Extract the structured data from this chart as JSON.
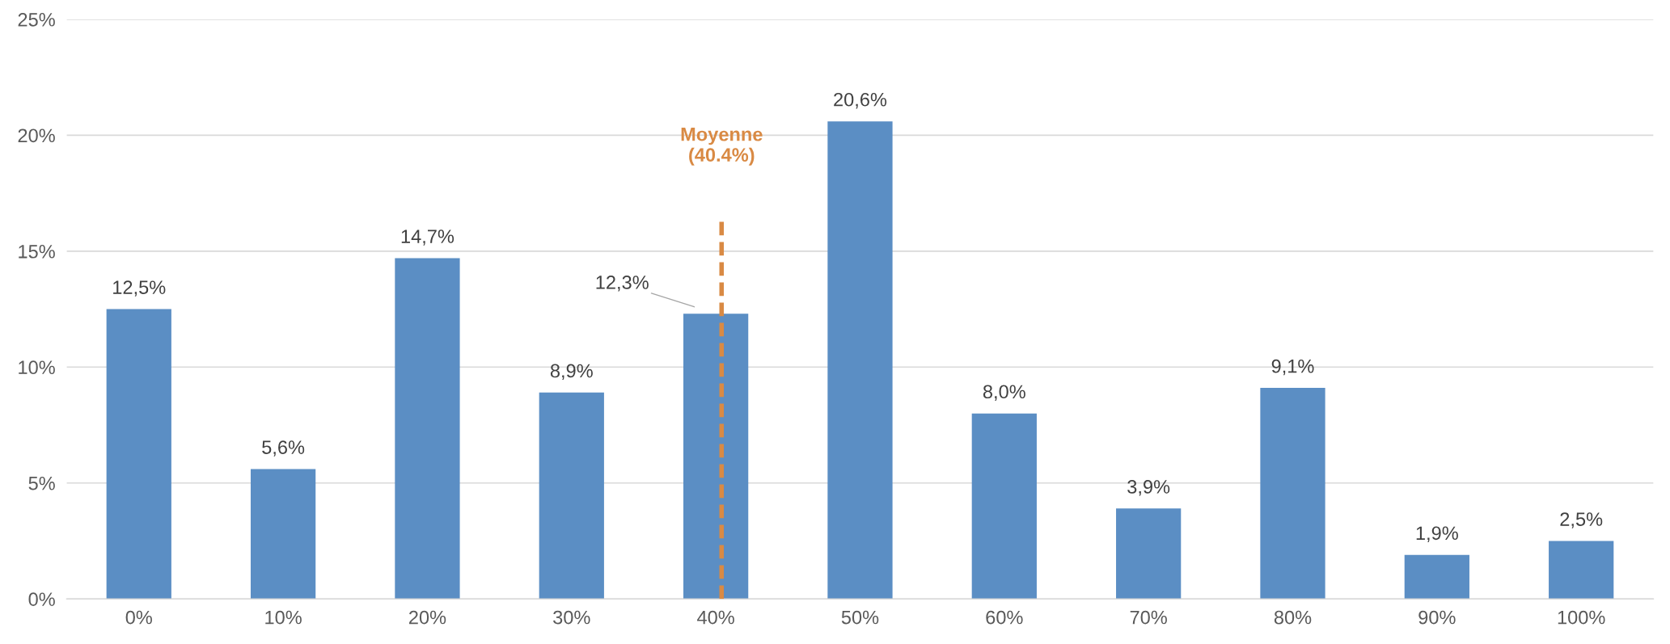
{
  "chart_data": {
    "type": "bar",
    "x": [
      0,
      10,
      20,
      30,
      40,
      50,
      60,
      70,
      80,
      90,
      100
    ],
    "values": [
      12.5,
      5.6,
      14.7,
      8.9,
      12.3,
      20.6,
      8.0,
      3.9,
      9.1,
      1.9,
      2.5
    ],
    "value_labels": [
      "12,5%",
      "5,6%",
      "14,7%",
      "8,9%",
      "12,3%",
      "20,6%",
      "8,0%",
      "3,9%",
      "9,1%",
      "1,9%",
      "2,5%"
    ],
    "color": "#5b8ec4",
    "xlim": [
      -5,
      105
    ],
    "xticks": [
      {
        "value": 0,
        "label": "0%"
      },
      {
        "value": 10,
        "label": "10%"
      },
      {
        "value": 20,
        "label": "20%"
      },
      {
        "value": 30,
        "label": "30%"
      },
      {
        "value": 40,
        "label": "40%"
      },
      {
        "value": 50,
        "label": "50%"
      },
      {
        "value": 60,
        "label": "60%"
      },
      {
        "value": 70,
        "label": "70%"
      },
      {
        "value": 80,
        "label": "80%"
      },
      {
        "value": 90,
        "label": "90%"
      },
      {
        "value": 100,
        "label": "100%"
      }
    ],
    "ylim": [
      0,
      25
    ],
    "yticks": [
      {
        "value": 0,
        "label": "0%"
      },
      {
        "value": 5,
        "label": "5%"
      },
      {
        "value": 10,
        "label": "10%"
      },
      {
        "value": 15,
        "label": "15%"
      },
      {
        "value": 20,
        "label": "20%"
      },
      {
        "value": 25,
        "label": "25%"
      }
    ],
    "grid": "y",
    "ref_lines": [
      {
        "axis": "x",
        "value": 40.4,
        "label": "Moyenne\n(40.4%)",
        "color": "#d98a44",
        "line_style": "dashed"
      }
    ]
  }
}
